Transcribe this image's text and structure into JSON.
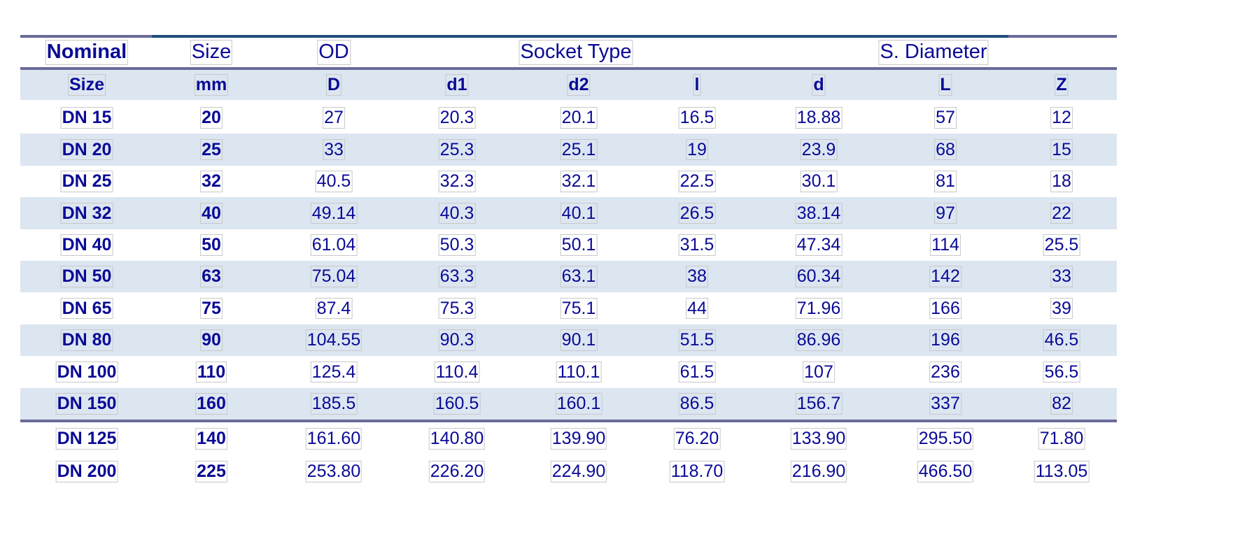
{
  "table": {
    "header_row_1": [
      "Nominal",
      "Size",
      "OD",
      "Socket Type",
      "S. Diameter"
    ],
    "header_row_2": [
      "Size",
      "mm",
      "D",
      "d1",
      "d2",
      "l",
      "d",
      "L",
      "Z"
    ],
    "rows": [
      [
        "DN 15",
        "20",
        "27",
        "20.3",
        "20.1",
        "16.5",
        "18.88",
        "57",
        "12"
      ],
      [
        "DN 20",
        "25",
        "33",
        "25.3",
        "25.1",
        "19",
        "23.9",
        "68",
        "15"
      ],
      [
        "DN 25",
        "32",
        "40.5",
        "32.3",
        "32.1",
        "22.5",
        "30.1",
        "81",
        "18"
      ],
      [
        "DN 32",
        "40",
        "49.14",
        "40.3",
        "40.1",
        "26.5",
        "38.14",
        "97",
        "22"
      ],
      [
        "DN 40",
        "50",
        "61.04",
        "50.3",
        "50.1",
        "31.5",
        "47.34",
        "114",
        "25.5"
      ],
      [
        "DN 50",
        "63",
        "75.04",
        "63.3",
        "63.1",
        "38",
        "60.34",
        "142",
        "33"
      ],
      [
        "DN 65",
        "75",
        "87.4",
        "75.3",
        "75.1",
        "44",
        "71.96",
        "166",
        "39"
      ],
      [
        "DN 80",
        "90",
        "104.55",
        "90.3",
        "90.1",
        "51.5",
        "86.96",
        "196",
        "46.5"
      ],
      [
        "DN 100",
        "110",
        "125.4",
        "110.4",
        "110.1",
        "61.5",
        "107",
        "236",
        "56.5"
      ],
      [
        "DN 150",
        "160",
        "185.5",
        "160.5",
        "160.1",
        "86.5",
        "156.7",
        "337",
        "82"
      ]
    ],
    "extra_rows": [
      [
        "DN 125",
        "140",
        "161.60",
        "140.80",
        "139.90",
        "76.20",
        "133.90",
        "295.50",
        "71.80"
      ],
      [
        "DN 200",
        "225",
        "253.80",
        "226.20",
        "224.90",
        "118.70",
        "216.90",
        "466.50",
        "113.05"
      ]
    ]
  }
}
